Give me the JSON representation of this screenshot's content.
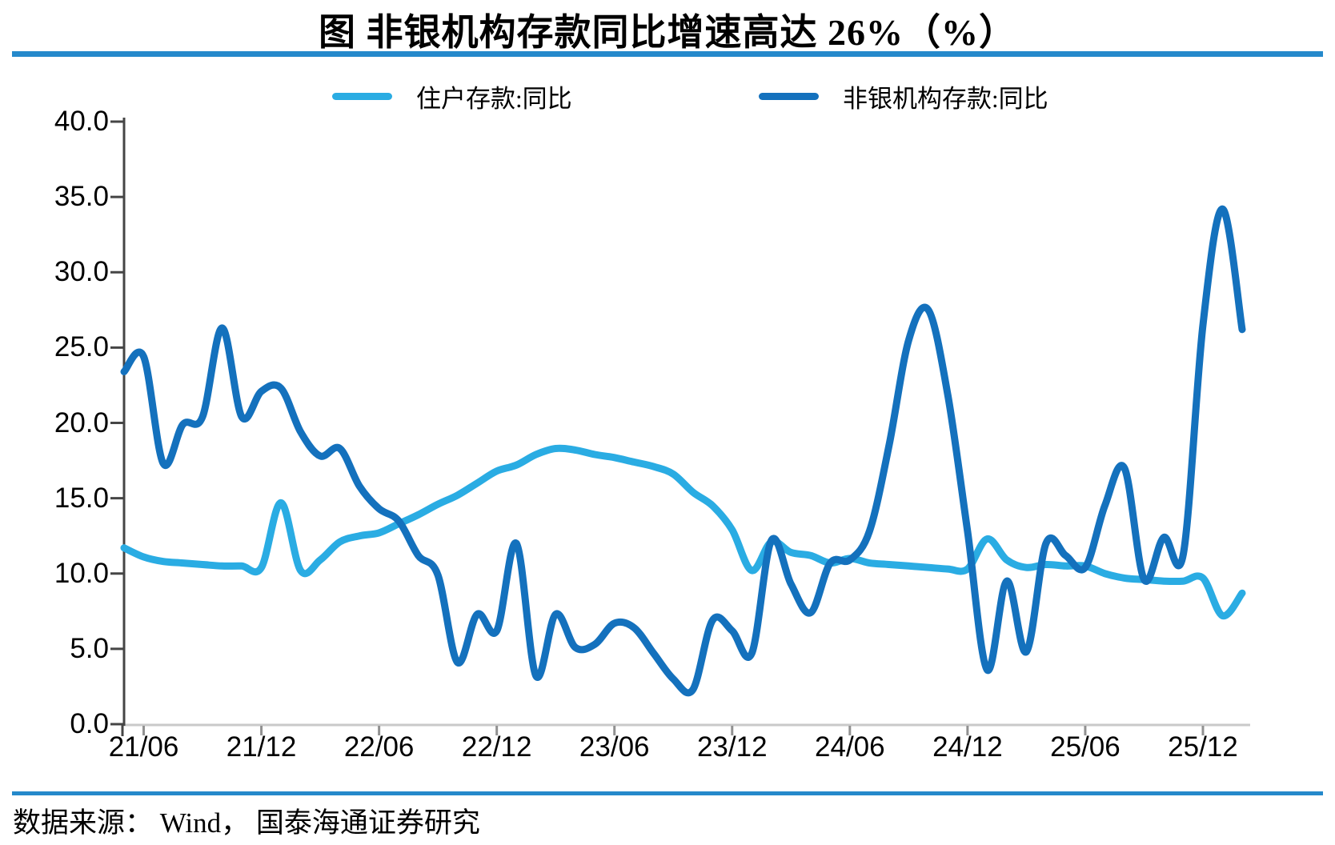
{
  "header": {
    "title": "图  非银机构存款同比增速高达 26%（%）"
  },
  "legend": [
    {
      "label": "住户存款:同比",
      "color": "#2AACE3"
    },
    {
      "label": "非银机构存款:同比",
      "color": "#1471BD"
    }
  ],
  "footer": {
    "source": "数据来源： Wind， 国泰海通证券研究"
  },
  "colors": {
    "rule_blue": "#2589CB",
    "y_axis": "#454545",
    "x_axis_line": "#C9C9C9",
    "x_tick": "#919191",
    "household_line": "#2AACE3",
    "nonbank_line": "#1471BD"
  },
  "chart_data": {
    "type": "line",
    "title": "图  非银机构存款同比增速高达 26%（%）",
    "unit": "%",
    "grid": false,
    "legend_position": "top",
    "ylim": [
      0,
      40
    ],
    "yticks": [
      0,
      5,
      10,
      15,
      20,
      25,
      30,
      35,
      40
    ],
    "yticklabels": [
      "0.0",
      "5.0",
      "10.0",
      "15.0",
      "20.0",
      "25.0",
      "30.0",
      "35.0",
      "40.0"
    ],
    "xticks": [
      "21/06",
      "21/12",
      "22/06",
      "22/12",
      "23/06",
      "23/12",
      "24/06",
      "24/12",
      "25/06",
      "25/12"
    ],
    "x": [
      "21/05",
      "21/06",
      "21/07",
      "21/08",
      "21/09",
      "21/10",
      "21/11",
      "21/12",
      "22/01",
      "22/02",
      "22/03",
      "22/04",
      "22/05",
      "22/06",
      "22/07",
      "22/08",
      "22/09",
      "22/10",
      "22/11",
      "22/12",
      "23/01",
      "23/02",
      "23/03",
      "23/04",
      "23/05",
      "23/06",
      "23/07",
      "23/08",
      "23/09",
      "23/10",
      "23/11",
      "23/12",
      "24/01",
      "24/02",
      "24/03",
      "24/04",
      "24/05",
      "24/06",
      "24/07",
      "24/08",
      "24/09",
      "24/10",
      "24/11",
      "24/12",
      "25/01",
      "25/02",
      "25/03",
      "25/04",
      "25/05",
      "25/06",
      "25/07",
      "25/08",
      "25/09",
      "25/10",
      "25/11",
      "25/12",
      "26/01",
      "26/02"
    ],
    "series": [
      {
        "name": "住户存款:同比",
        "color": "#2AACE3",
        "values": [
          11.7,
          11.1,
          10.8,
          10.7,
          10.6,
          10.5,
          10.5,
          10.4,
          14.7,
          10.2,
          10.9,
          12.1,
          12.5,
          12.7,
          13.3,
          13.9,
          14.6,
          15.2,
          16.0,
          16.8,
          17.2,
          17.9,
          18.3,
          18.2,
          17.9,
          17.7,
          17.4,
          17.1,
          16.6,
          15.4,
          14.5,
          12.9,
          10.2,
          12.1,
          11.4,
          11.2,
          10.7,
          11.0,
          10.7,
          10.6,
          10.5,
          10.4,
          10.3,
          10.3,
          12.3,
          10.9,
          10.4,
          10.6,
          10.5,
          10.5,
          10.0,
          9.7,
          9.6,
          9.5,
          9.5,
          9.7,
          7.2,
          8.7
        ]
      },
      {
        "name": "非银机构存款:同比",
        "color": "#1471BD",
        "values": [
          23.4,
          24.4,
          17.3,
          19.9,
          20.4,
          26.3,
          20.4,
          22.1,
          22.3,
          19.4,
          17.8,
          18.3,
          15.8,
          14.3,
          13.5,
          11.2,
          9.9,
          4.1,
          7.3,
          6.2,
          12.0,
          3.2,
          7.3,
          5.1,
          5.3,
          6.7,
          6.4,
          4.7,
          3.0,
          2.3,
          6.9,
          6.2,
          4.7,
          12.2,
          9.3,
          7.4,
          10.7,
          10.9,
          12.8,
          18.5,
          25.5,
          27.5,
          21.8,
          12.8,
          3.6,
          9.5,
          4.8,
          12.0,
          11.2,
          10.4,
          14.5,
          17.0,
          9.6,
          12.4,
          11.3,
          26.5,
          34.2,
          26.2
        ]
      }
    ]
  }
}
